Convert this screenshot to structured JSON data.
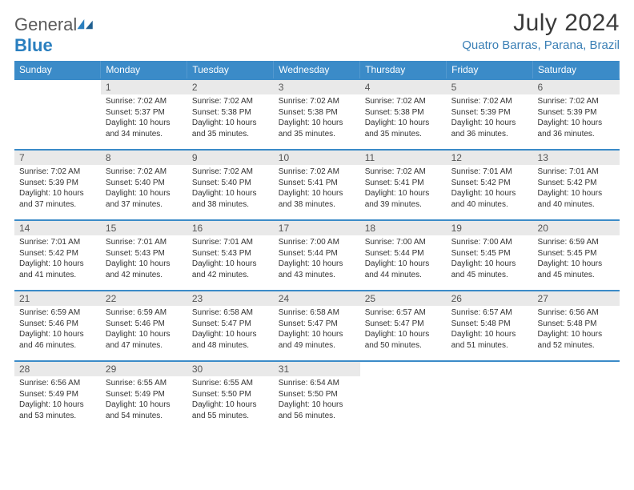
{
  "brand": {
    "name_part1": "General",
    "name_part2": "Blue"
  },
  "title": "July 2024",
  "location": "Quatro Barras, Parana, Brazil",
  "colors": {
    "header_bg": "#3b8bc8",
    "header_text": "#ffffff",
    "daynum_bg": "#e9e9e9",
    "location_text": "#3a7fb5",
    "row_divider": "#3b8bc8"
  },
  "weekdays": [
    "Sunday",
    "Monday",
    "Tuesday",
    "Wednesday",
    "Thursday",
    "Friday",
    "Saturday"
  ],
  "weeks": [
    [
      {
        "n": "",
        "sr": "",
        "ss": "",
        "dl": "",
        "empty": true
      },
      {
        "n": "1",
        "sr": "Sunrise: 7:02 AM",
        "ss": "Sunset: 5:37 PM",
        "dl": "Daylight: 10 hours and 34 minutes."
      },
      {
        "n": "2",
        "sr": "Sunrise: 7:02 AM",
        "ss": "Sunset: 5:38 PM",
        "dl": "Daylight: 10 hours and 35 minutes."
      },
      {
        "n": "3",
        "sr": "Sunrise: 7:02 AM",
        "ss": "Sunset: 5:38 PM",
        "dl": "Daylight: 10 hours and 35 minutes."
      },
      {
        "n": "4",
        "sr": "Sunrise: 7:02 AM",
        "ss": "Sunset: 5:38 PM",
        "dl": "Daylight: 10 hours and 35 minutes."
      },
      {
        "n": "5",
        "sr": "Sunrise: 7:02 AM",
        "ss": "Sunset: 5:39 PM",
        "dl": "Daylight: 10 hours and 36 minutes."
      },
      {
        "n": "6",
        "sr": "Sunrise: 7:02 AM",
        "ss": "Sunset: 5:39 PM",
        "dl": "Daylight: 10 hours and 36 minutes."
      }
    ],
    [
      {
        "n": "7",
        "sr": "Sunrise: 7:02 AM",
        "ss": "Sunset: 5:39 PM",
        "dl": "Daylight: 10 hours and 37 minutes."
      },
      {
        "n": "8",
        "sr": "Sunrise: 7:02 AM",
        "ss": "Sunset: 5:40 PM",
        "dl": "Daylight: 10 hours and 37 minutes."
      },
      {
        "n": "9",
        "sr": "Sunrise: 7:02 AM",
        "ss": "Sunset: 5:40 PM",
        "dl": "Daylight: 10 hours and 38 minutes."
      },
      {
        "n": "10",
        "sr": "Sunrise: 7:02 AM",
        "ss": "Sunset: 5:41 PM",
        "dl": "Daylight: 10 hours and 38 minutes."
      },
      {
        "n": "11",
        "sr": "Sunrise: 7:02 AM",
        "ss": "Sunset: 5:41 PM",
        "dl": "Daylight: 10 hours and 39 minutes."
      },
      {
        "n": "12",
        "sr": "Sunrise: 7:01 AM",
        "ss": "Sunset: 5:42 PM",
        "dl": "Daylight: 10 hours and 40 minutes."
      },
      {
        "n": "13",
        "sr": "Sunrise: 7:01 AM",
        "ss": "Sunset: 5:42 PM",
        "dl": "Daylight: 10 hours and 40 minutes."
      }
    ],
    [
      {
        "n": "14",
        "sr": "Sunrise: 7:01 AM",
        "ss": "Sunset: 5:42 PM",
        "dl": "Daylight: 10 hours and 41 minutes."
      },
      {
        "n": "15",
        "sr": "Sunrise: 7:01 AM",
        "ss": "Sunset: 5:43 PM",
        "dl": "Daylight: 10 hours and 42 minutes."
      },
      {
        "n": "16",
        "sr": "Sunrise: 7:01 AM",
        "ss": "Sunset: 5:43 PM",
        "dl": "Daylight: 10 hours and 42 minutes."
      },
      {
        "n": "17",
        "sr": "Sunrise: 7:00 AM",
        "ss": "Sunset: 5:44 PM",
        "dl": "Daylight: 10 hours and 43 minutes."
      },
      {
        "n": "18",
        "sr": "Sunrise: 7:00 AM",
        "ss": "Sunset: 5:44 PM",
        "dl": "Daylight: 10 hours and 44 minutes."
      },
      {
        "n": "19",
        "sr": "Sunrise: 7:00 AM",
        "ss": "Sunset: 5:45 PM",
        "dl": "Daylight: 10 hours and 45 minutes."
      },
      {
        "n": "20",
        "sr": "Sunrise: 6:59 AM",
        "ss": "Sunset: 5:45 PM",
        "dl": "Daylight: 10 hours and 45 minutes."
      }
    ],
    [
      {
        "n": "21",
        "sr": "Sunrise: 6:59 AM",
        "ss": "Sunset: 5:46 PM",
        "dl": "Daylight: 10 hours and 46 minutes."
      },
      {
        "n": "22",
        "sr": "Sunrise: 6:59 AM",
        "ss": "Sunset: 5:46 PM",
        "dl": "Daylight: 10 hours and 47 minutes."
      },
      {
        "n": "23",
        "sr": "Sunrise: 6:58 AM",
        "ss": "Sunset: 5:47 PM",
        "dl": "Daylight: 10 hours and 48 minutes."
      },
      {
        "n": "24",
        "sr": "Sunrise: 6:58 AM",
        "ss": "Sunset: 5:47 PM",
        "dl": "Daylight: 10 hours and 49 minutes."
      },
      {
        "n": "25",
        "sr": "Sunrise: 6:57 AM",
        "ss": "Sunset: 5:47 PM",
        "dl": "Daylight: 10 hours and 50 minutes."
      },
      {
        "n": "26",
        "sr": "Sunrise: 6:57 AM",
        "ss": "Sunset: 5:48 PM",
        "dl": "Daylight: 10 hours and 51 minutes."
      },
      {
        "n": "27",
        "sr": "Sunrise: 6:56 AM",
        "ss": "Sunset: 5:48 PM",
        "dl": "Daylight: 10 hours and 52 minutes."
      }
    ],
    [
      {
        "n": "28",
        "sr": "Sunrise: 6:56 AM",
        "ss": "Sunset: 5:49 PM",
        "dl": "Daylight: 10 hours and 53 minutes."
      },
      {
        "n": "29",
        "sr": "Sunrise: 6:55 AM",
        "ss": "Sunset: 5:49 PM",
        "dl": "Daylight: 10 hours and 54 minutes."
      },
      {
        "n": "30",
        "sr": "Sunrise: 6:55 AM",
        "ss": "Sunset: 5:50 PM",
        "dl": "Daylight: 10 hours and 55 minutes."
      },
      {
        "n": "31",
        "sr": "Sunrise: 6:54 AM",
        "ss": "Sunset: 5:50 PM",
        "dl": "Daylight: 10 hours and 56 minutes."
      },
      {
        "n": "",
        "sr": "",
        "ss": "",
        "dl": "",
        "empty": true
      },
      {
        "n": "",
        "sr": "",
        "ss": "",
        "dl": "",
        "empty": true
      },
      {
        "n": "",
        "sr": "",
        "ss": "",
        "dl": "",
        "empty": true
      }
    ]
  ]
}
